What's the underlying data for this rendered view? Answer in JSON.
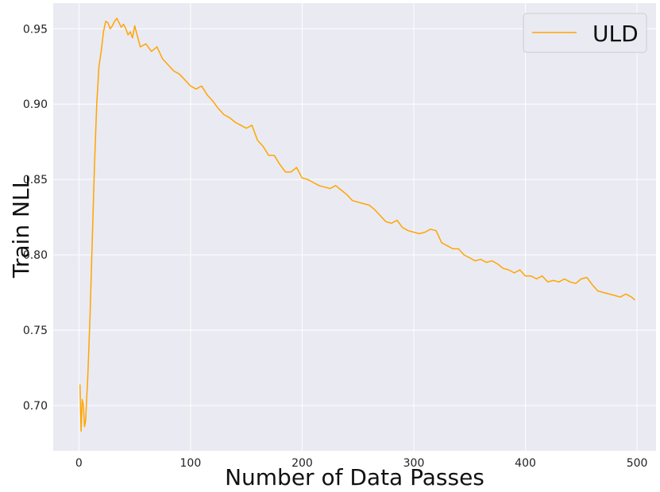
{
  "chart_data": {
    "type": "line",
    "title": "",
    "xlabel": "Number of Data Passes",
    "ylabel": "Train NLL",
    "xlim": [
      -23,
      517
    ],
    "ylim": [
      0.67,
      0.967
    ],
    "xticks": [
      0,
      100,
      200,
      300,
      400,
      500
    ],
    "yticks": [
      0.7,
      0.75,
      0.8,
      0.85,
      0.9,
      0.95
    ],
    "xtick_labels": [
      "0",
      "100",
      "200",
      "300",
      "400",
      "500"
    ],
    "ytick_labels": [
      "0.70",
      "0.75",
      "0.80",
      "0.85",
      "0.90",
      "0.95"
    ],
    "grid": true,
    "legend_position": "top-right",
    "background_color": "#eaeaf2",
    "grid_color": "#ffffff",
    "series": [
      {
        "name": "ULD",
        "color": "#ffa500",
        "x": [
          1,
          2,
          3,
          4,
          5,
          6,
          8,
          10,
          12,
          14,
          16,
          18,
          20,
          22,
          24,
          26,
          28,
          30,
          32,
          34,
          36,
          38,
          40,
          42,
          44,
          46,
          48,
          50,
          55,
          60,
          65,
          70,
          75,
          80,
          85,
          90,
          95,
          100,
          105,
          110,
          115,
          120,
          125,
          130,
          135,
          140,
          145,
          150,
          155,
          160,
          165,
          170,
          175,
          180,
          185,
          190,
          195,
          200,
          205,
          210,
          215,
          220,
          225,
          230,
          235,
          240,
          245,
          250,
          255,
          260,
          265,
          270,
          275,
          280,
          285,
          290,
          295,
          300,
          305,
          310,
          315,
          320,
          325,
          330,
          335,
          340,
          345,
          350,
          355,
          360,
          365,
          370,
          375,
          380,
          385,
          390,
          395,
          400,
          405,
          410,
          415,
          420,
          425,
          430,
          435,
          440,
          445,
          450,
          455,
          460,
          465,
          470,
          475,
          480,
          485,
          490,
          495,
          498
        ],
        "y": [
          0.714,
          0.683,
          0.704,
          0.7,
          0.686,
          0.69,
          0.72,
          0.76,
          0.81,
          0.86,
          0.9,
          0.925,
          0.935,
          0.948,
          0.955,
          0.954,
          0.95,
          0.952,
          0.955,
          0.957,
          0.954,
          0.951,
          0.953,
          0.95,
          0.946,
          0.948,
          0.944,
          0.952,
          0.938,
          0.94,
          0.935,
          0.938,
          0.93,
          0.926,
          0.922,
          0.92,
          0.916,
          0.912,
          0.91,
          0.912,
          0.906,
          0.902,
          0.897,
          0.893,
          0.891,
          0.888,
          0.886,
          0.884,
          0.886,
          0.876,
          0.872,
          0.866,
          0.866,
          0.86,
          0.855,
          0.855,
          0.858,
          0.851,
          0.85,
          0.848,
          0.846,
          0.845,
          0.844,
          0.846,
          0.843,
          0.84,
          0.836,
          0.835,
          0.834,
          0.833,
          0.83,
          0.826,
          0.822,
          0.821,
          0.823,
          0.818,
          0.816,
          0.815,
          0.814,
          0.815,
          0.817,
          0.816,
          0.808,
          0.806,
          0.804,
          0.804,
          0.8,
          0.798,
          0.796,
          0.797,
          0.795,
          0.796,
          0.794,
          0.791,
          0.79,
          0.788,
          0.79,
          0.786,
          0.786,
          0.784,
          0.786,
          0.782,
          0.783,
          0.782,
          0.784,
          0.782,
          0.781,
          0.784,
          0.785,
          0.78,
          0.776,
          0.775,
          0.774,
          0.773,
          0.772,
          0.774,
          0.772,
          0.77
        ]
      }
    ]
  }
}
